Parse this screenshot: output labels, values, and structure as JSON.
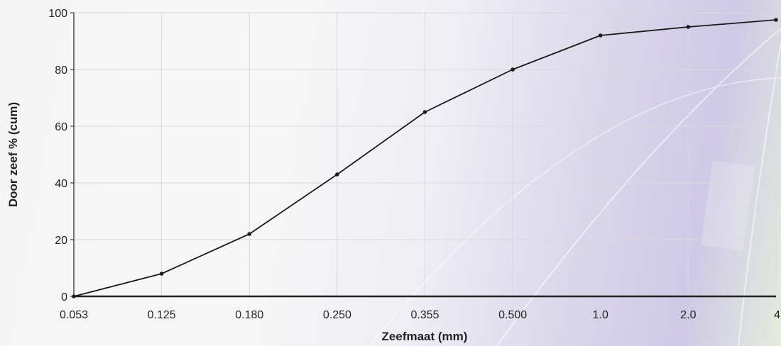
{
  "chart_data": {
    "type": "line",
    "title": "",
    "xlabel": "Zeefmaat (mm)",
    "ylabel": "Door zeef % (cum)",
    "categories": [
      "0.053",
      "0.125",
      "0.180",
      "0.250",
      "0.355",
      "0.500",
      "1.0",
      "2.0",
      "4"
    ],
    "series": [
      {
        "values": [
          0,
          8,
          22,
          43,
          65,
          80,
          92,
          95,
          97.5
        ]
      }
    ],
    "ylim": [
      0,
      100
    ],
    "yticks": [
      "0",
      "20",
      "40",
      "60",
      "80",
      "100"
    ],
    "grid": true,
    "legend": "none",
    "colors": {
      "line": "#1a1a1a",
      "point": "#1a1a1a",
      "axis": "#222222",
      "grid": "#d9d9de"
    }
  }
}
